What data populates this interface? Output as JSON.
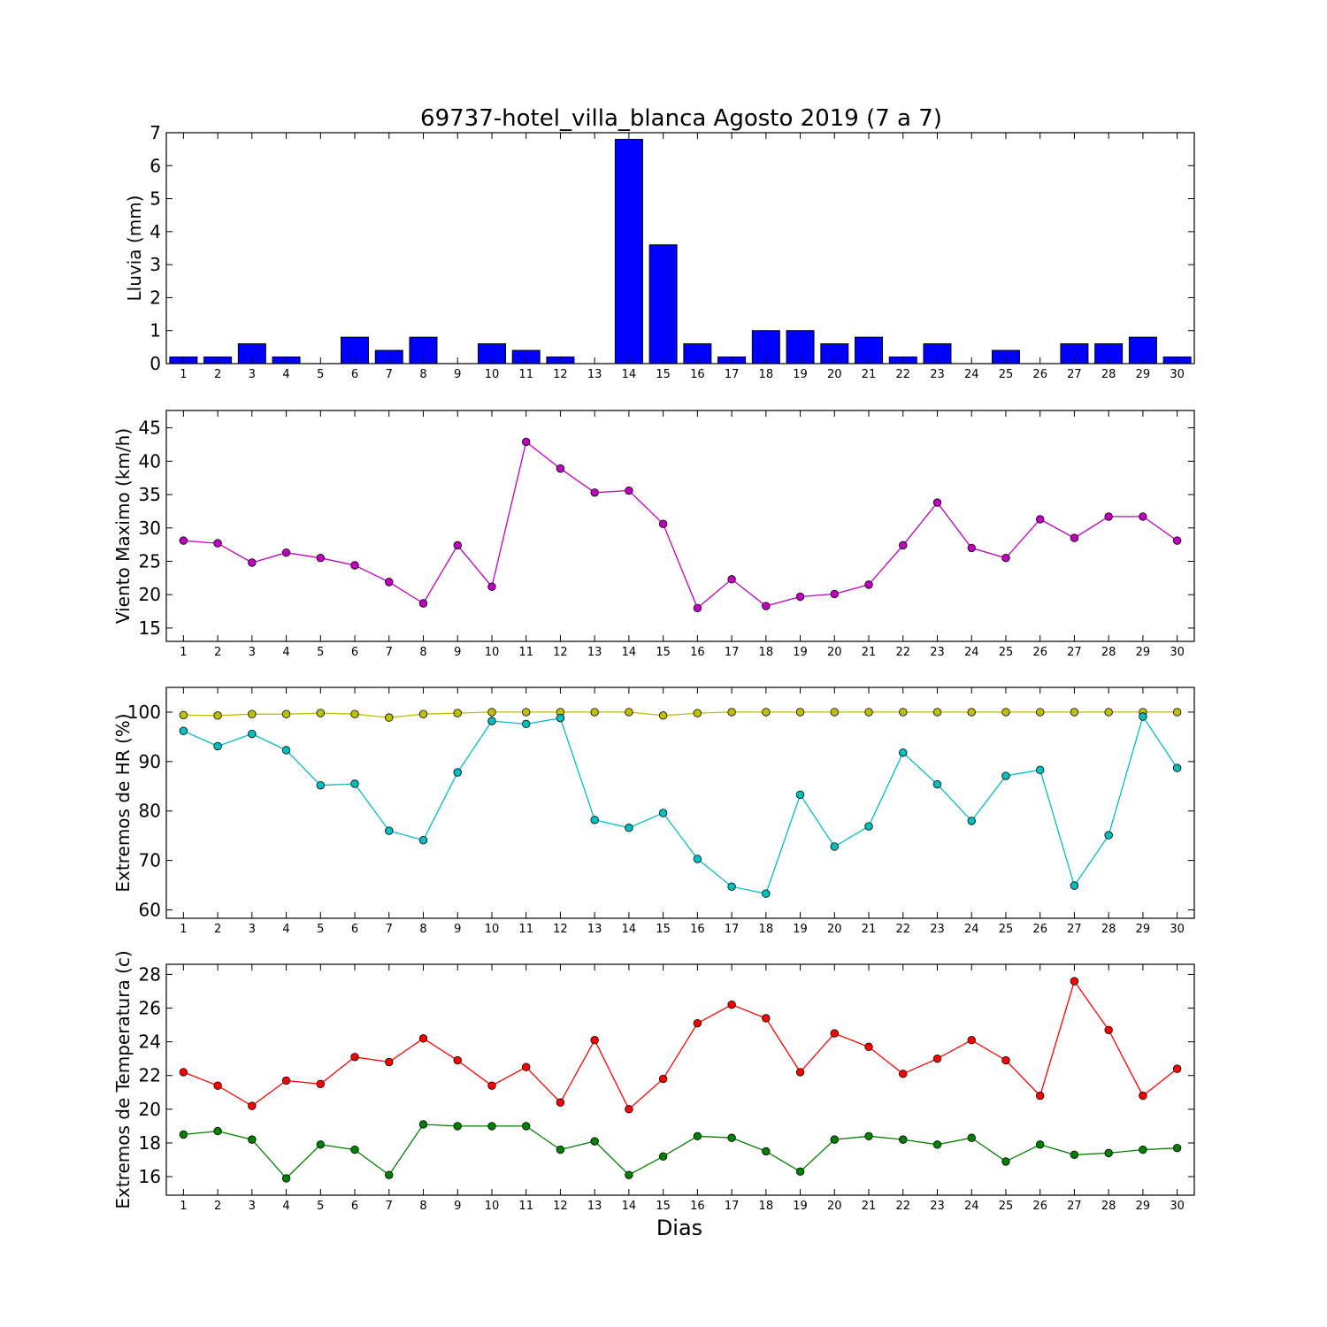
{
  "title": "69737-hotel_villa_blanca Agosto 2019  (7 a 7)",
  "xlabel": "Dias",
  "chart_data": [
    {
      "type": "bar",
      "name": "lluvia",
      "ylabel": "Lluvia (mm)",
      "categories": [
        1,
        2,
        3,
        4,
        5,
        6,
        7,
        8,
        9,
        10,
        11,
        12,
        13,
        14,
        15,
        16,
        17,
        18,
        19,
        20,
        21,
        22,
        23,
        24,
        25,
        26,
        27,
        28,
        29,
        30
      ],
      "ylim": [
        0,
        7
      ],
      "yticks": [
        0,
        1,
        2,
        3,
        4,
        5,
        6,
        7
      ],
      "series": [
        {
          "color": "#0000ff",
          "values": [
            0.2,
            0.2,
            0.6,
            0.2,
            0,
            0.8,
            0.4,
            0.8,
            0,
            0.6,
            0.4,
            0.2,
            0,
            6.8,
            3.6,
            0.6,
            0.2,
            1.0,
            1.0,
            0.6,
            0.8,
            0.2,
            0.6,
            0,
            0.4,
            0,
            0.6,
            0.6,
            0.8,
            0.2
          ]
        }
      ]
    },
    {
      "type": "line",
      "name": "viento",
      "ylabel": "Viento Maximo (km/h)",
      "x": [
        1,
        2,
        3,
        4,
        5,
        6,
        7,
        8,
        9,
        10,
        11,
        12,
        13,
        14,
        15,
        16,
        17,
        18,
        19,
        20,
        21,
        22,
        23,
        24,
        25,
        26,
        27,
        28,
        29,
        30
      ],
      "ylim": [
        13,
        47.6
      ],
      "yticks": [
        15,
        20,
        25,
        30,
        35,
        40,
        45
      ],
      "series": [
        {
          "color": "#bf00bf",
          "values": [
            28.1,
            27.7,
            24.8,
            26.3,
            25.5,
            24.4,
            21.9,
            18.7,
            27.4,
            21.2,
            42.9,
            38.9,
            35.3,
            35.6,
            30.6,
            18.0,
            22.3,
            18.3,
            19.7,
            20.1,
            21.5,
            27.4,
            33.8,
            27.0,
            25.5,
            31.3,
            28.5,
            31.7,
            31.7,
            28.1
          ]
        }
      ]
    },
    {
      "type": "line",
      "name": "humedad",
      "ylabel": "Extremos de HR (%)",
      "x": [
        1,
        2,
        3,
        4,
        5,
        6,
        7,
        8,
        9,
        10,
        11,
        12,
        13,
        14,
        15,
        16,
        17,
        18,
        19,
        20,
        21,
        22,
        23,
        24,
        25,
        26,
        27,
        28,
        29,
        30
      ],
      "ylim": [
        58.3,
        105
      ],
      "yticks": [
        60,
        70,
        80,
        90,
        100
      ],
      "series": [
        {
          "color": "#bfbf00",
          "values": [
            99.4,
            99.3,
            99.6,
            99.6,
            99.8,
            99.6,
            98.9,
            99.6,
            99.8,
            100,
            100,
            100,
            100,
            100,
            99.3,
            99.8,
            100,
            100,
            100,
            100,
            100,
            100,
            100,
            100,
            100,
            100,
            100,
            100,
            100,
            100
          ]
        },
        {
          "color": "#00bfbf",
          "values": [
            96.2,
            93.1,
            95.6,
            92.3,
            85.2,
            85.5,
            76.0,
            74.1,
            87.8,
            98.2,
            97.6,
            98.8,
            78.2,
            76.6,
            79.6,
            70.3,
            64.7,
            63.3,
            83.3,
            72.8,
            76.9,
            91.8,
            85.4,
            78.0,
            87.1,
            88.3,
            64.9,
            75.1,
            99.1,
            88.7
          ]
        }
      ]
    },
    {
      "type": "line",
      "name": "temperatura",
      "ylabel": "Extremos de Temperatura (c)",
      "x": [
        1,
        2,
        3,
        4,
        5,
        6,
        7,
        8,
        9,
        10,
        11,
        12,
        13,
        14,
        15,
        16,
        17,
        18,
        19,
        20,
        21,
        22,
        23,
        24,
        25,
        26,
        27,
        28,
        29,
        30
      ],
      "ylim": [
        14.9,
        28.6
      ],
      "yticks": [
        16,
        18,
        20,
        22,
        24,
        26,
        28
      ],
      "series": [
        {
          "color": "#ff0000",
          "values": [
            22.2,
            21.4,
            20.2,
            21.7,
            21.5,
            23.1,
            22.8,
            24.2,
            22.9,
            21.4,
            22.5,
            20.4,
            24.1,
            20.0,
            21.8,
            25.1,
            26.2,
            25.4,
            22.2,
            24.5,
            23.7,
            22.1,
            23.0,
            24.1,
            22.9,
            20.8,
            27.6,
            24.7,
            20.8,
            22.4
          ]
        },
        {
          "color": "#008000",
          "values": [
            18.5,
            18.7,
            18.2,
            15.9,
            17.9,
            17.6,
            16.1,
            19.1,
            19.0,
            19.0,
            19.0,
            17.6,
            18.1,
            16.1,
            17.2,
            18.4,
            18.3,
            17.5,
            16.3,
            18.2,
            18.4,
            18.2,
            17.9,
            18.3,
            16.9,
            17.9,
            17.3,
            17.4,
            17.6,
            17.7
          ]
        }
      ]
    }
  ]
}
